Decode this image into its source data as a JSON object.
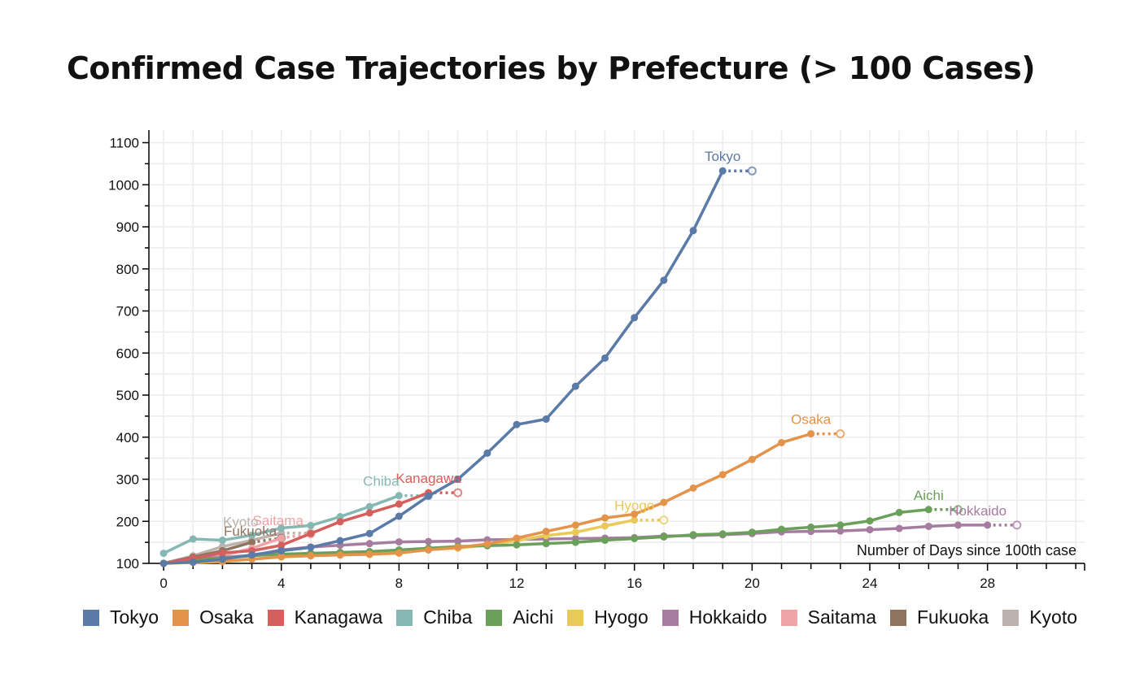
{
  "title": "Confirmed Case Trajectories by Prefecture (> 100 Cases)",
  "chart_data": {
    "type": "line",
    "title": "Confirmed Case Trajectories by Prefecture (> 100 Cases)",
    "xlabel": "Number of Days since 100th case",
    "ylabel": "",
    "xlim": [
      -0.5,
      31.3
    ],
    "ylim": [
      100,
      1130
    ],
    "xticks": [
      0,
      4,
      8,
      12,
      16,
      20,
      24,
      28
    ],
    "yticks": [
      100,
      200,
      300,
      400,
      500,
      600,
      700,
      800,
      900,
      1000,
      1100
    ],
    "grid": true,
    "legend_position": "bottom",
    "series": [
      {
        "name": "Tokyo",
        "color": "#5a7aa8",
        "label": "Tokyo",
        "x": [
          0,
          1,
          2,
          3,
          4,
          5,
          6,
          7,
          8,
          9,
          10,
          11,
          12,
          13,
          14,
          15,
          16,
          17,
          18,
          19
        ],
        "y": [
          100,
          103,
          110,
          120,
          130,
          138,
          154,
          171,
          212,
          260,
          300,
          362,
          430,
          443,
          521,
          588,
          684,
          773,
          891,
          1033
        ],
        "projected": [
          20,
          1033
        ]
      },
      {
        "name": "Osaka",
        "color": "#e4934a",
        "label": "Osaka",
        "x": [
          0,
          1,
          2,
          3,
          4,
          5,
          6,
          7,
          8,
          9,
          10,
          11,
          12,
          13,
          14,
          15,
          16,
          17,
          18,
          19,
          20,
          21,
          22
        ],
        "y": [
          100,
          103,
          105,
          110,
          116,
          118,
          120,
          122,
          125,
          132,
          138,
          146,
          160,
          176,
          191,
          208,
          217,
          245,
          279,
          311,
          347,
          387,
          408
        ],
        "projected": [
          23,
          408
        ]
      },
      {
        "name": "Kanagawa",
        "color": "#d45f5c",
        "label": "Kanagawa",
        "x": [
          0,
          1,
          2,
          3,
          4,
          5,
          6,
          7,
          8,
          9
        ],
        "y": [
          100,
          112,
          125,
          130,
          143,
          171,
          199,
          220,
          241,
          268
        ],
        "projected": [
          10,
          268
        ]
      },
      {
        "name": "Chiba",
        "color": "#86b8b3",
        "label": "Chiba",
        "x": [
          0,
          1,
          2,
          3,
          4,
          5,
          6,
          7,
          8
        ],
        "y": [
          124,
          158,
          155,
          167,
          184,
          190,
          211,
          235,
          261
        ],
        "projected": [
          9,
          261
        ]
      },
      {
        "name": "Aichi",
        "color": "#6aa05a",
        "label": "Aichi",
        "x": [
          0,
          1,
          2,
          3,
          4,
          5,
          6,
          7,
          8,
          9,
          10,
          11,
          12,
          13,
          14,
          15,
          16,
          17,
          18,
          19,
          20,
          21,
          22,
          23,
          24,
          25,
          26
        ],
        "y": [
          100,
          108,
          112,
          118,
          122,
          124,
          126,
          128,
          132,
          136,
          140,
          142,
          144,
          147,
          150,
          155,
          159,
          163,
          168,
          170,
          174,
          181,
          186,
          191,
          201,
          221,
          228
        ],
        "projected": [
          27,
          228
        ]
      },
      {
        "name": "Hyogo",
        "color": "#e8c95a",
        "label": "Hyogo",
        "x": [
          0,
          1,
          2,
          3,
          4,
          5,
          6,
          7,
          8,
          9,
          10,
          11,
          12,
          13,
          14,
          15,
          16
        ],
        "y": [
          100,
          102,
          104,
          110,
          115,
          118,
          120,
          121,
          124,
          133,
          136,
          144,
          154,
          166,
          174,
          189,
          203
        ],
        "projected": [
          17,
          203
        ]
      },
      {
        "name": "Hokkaido",
        "color": "#a67ca0",
        "label": "Hokkaido",
        "x": [
          0,
          1,
          2,
          3,
          4,
          5,
          6,
          7,
          8,
          9,
          10,
          11,
          12,
          13,
          14,
          15,
          16,
          17,
          18,
          19,
          20,
          21,
          22,
          23,
          24,
          25,
          26,
          27,
          28
        ],
        "y": [
          100,
          111,
          114,
          119,
          132,
          139,
          143,
          147,
          151,
          152,
          153,
          156,
          157,
          158,
          159,
          160,
          161,
          165,
          166,
          168,
          171,
          175,
          176,
          177,
          180,
          183,
          188,
          191,
          191
        ],
        "projected": [
          29,
          191
        ]
      },
      {
        "name": "Saitama",
        "color": "#f0a3a6",
        "label": "Saitama",
        "x": [
          0,
          1,
          2,
          3,
          4
        ],
        "y": [
          100,
          108,
          118,
          136,
          160
        ],
        "projected": [
          5,
          170
        ]
      },
      {
        "name": "Fukuoka",
        "color": "#8f7560",
        "label": "Fukuoka",
        "x": [
          0,
          1,
          2,
          3
        ],
        "y": [
          100,
          115,
          130,
          150
        ],
        "projected": [
          4,
          160
        ]
      },
      {
        "name": "Kyoto",
        "color": "#bdb3ae",
        "label": "Kyoto",
        "x": [
          0,
          1,
          2,
          3,
          4
        ],
        "y": [
          100,
          118,
          140,
          155,
          172
        ],
        "projected": [
          5,
          172
        ]
      }
    ]
  },
  "legend": [
    {
      "label": "Tokyo",
      "color": "#5a7aa8"
    },
    {
      "label": "Osaka",
      "color": "#e4934a"
    },
    {
      "label": "Kanagawa",
      "color": "#d45f5c"
    },
    {
      "label": "Chiba",
      "color": "#86b8b3"
    },
    {
      "label": "Aichi",
      "color": "#6aa05a"
    },
    {
      "label": "Hyogo",
      "color": "#e8c95a"
    },
    {
      "label": "Hokkaido",
      "color": "#a67ca0"
    },
    {
      "label": "Saitama",
      "color": "#f0a3a6"
    },
    {
      "label": "Fukuoka",
      "color": "#8f7560"
    },
    {
      "label": "Kyoto",
      "color": "#bdb3ae"
    }
  ]
}
